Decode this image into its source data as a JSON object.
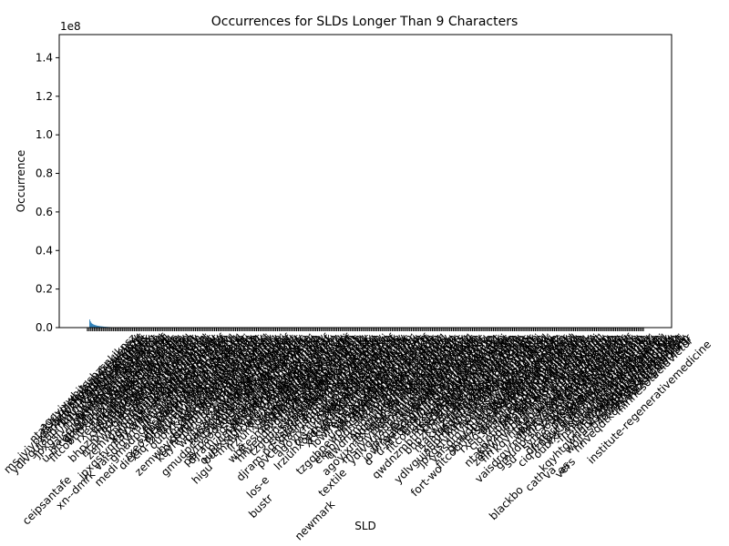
{
  "chart_data": {
    "type": "bar",
    "title": "Occurrences for SLDs Longer Than 9 Characters",
    "xlabel": "SLD",
    "ylabel": "Occurrence",
    "offset_label": "1e8",
    "ylim": [
      0,
      152000000
    ],
    "y_ticks": [
      0,
      20000000,
      40000000,
      60000000,
      80000000,
      100000000,
      120000000,
      140000000
    ],
    "y_tick_labels": [
      "0.0",
      "0.2",
      "0.4",
      "0.6",
      "0.8",
      "1.0",
      "1.2",
      "1.4"
    ],
    "bar_color": "#1f77b4",
    "grid": false,
    "legend": "none",
    "values": [
      4200000,
      3300000,
      2600000,
      2200000,
      1900000,
      1700000,
      1500000,
      1350000,
      1250000,
      1150000,
      1050000,
      950000,
      880000,
      820000,
      760000,
      700000,
      650000,
      600000,
      560000,
      520000,
      480000,
      450000,
      420000,
      390000,
      360000,
      340000,
      320000,
      300000,
      280000,
      260000
    ],
    "visible_tick_labels": [
      "ceipsantafe",
      "xn--dmrk",
      "medi",
      "die",
      "jo",
      "co",
      "gs",
      "n",
      "bu",
      "e",
      "higu",
      "pe",
      "los-e",
      "bustr",
      "newmark",
      "textile",
      "n",
      "d",
      "fort-wo",
      "fin",
      "ch",
      "blackbo",
      "cath",
      "su",
      "va",
      "as",
      "vers",
      "minnesotaeldvictor",
      "institute-regenerativemedicine"
    ]
  }
}
